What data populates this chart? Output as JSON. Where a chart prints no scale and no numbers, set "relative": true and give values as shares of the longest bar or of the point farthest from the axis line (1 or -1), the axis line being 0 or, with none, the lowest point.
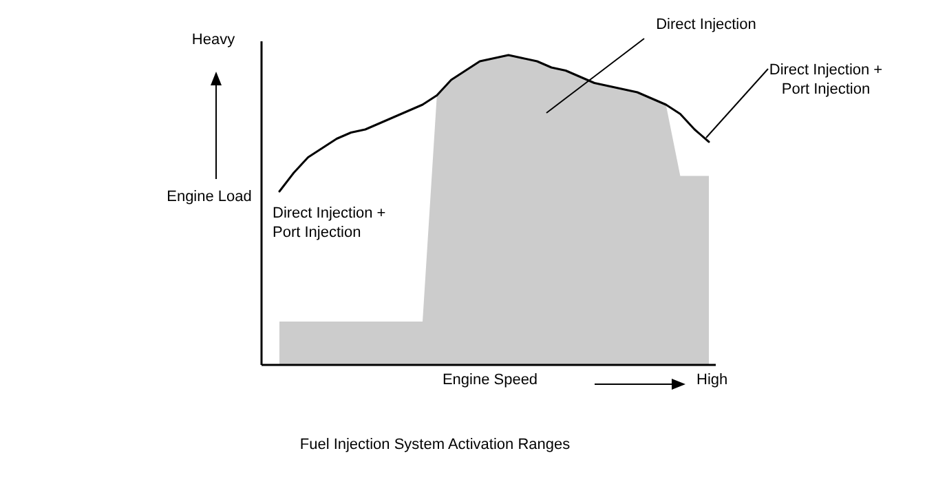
{
  "chart_data": {
    "type": "area",
    "relative": true,
    "title": "Fuel Injection System Activation Ranges",
    "xlabel": "Engine Speed",
    "ylabel": "Engine Load",
    "categories": [
      null,
      null,
      null,
      null,
      null,
      null,
      null,
      null,
      null,
      null,
      null,
      null,
      null,
      null,
      null,
      null,
      null,
      null,
      null,
      null,
      null,
      null,
      null,
      null,
      null,
      null,
      null,
      null,
      null,
      null,
      null
    ],
    "series": [
      {
        "color": "#cccccc",
        "values": [
          0.14,
          0.14,
          0.14,
          0.14,
          0.14,
          0.14,
          0.14,
          0.14,
          0.14,
          0.14,
          0.14,
          0.87,
          0.92,
          0.95,
          0.98,
          0.99,
          1.0,
          0.99,
          0.98,
          0.96,
          0.95,
          0.93,
          0.91,
          0.9,
          0.89,
          0.88,
          0.86,
          0.84,
          0.61,
          0.61,
          0.61
        ]
      },
      {
        "type": "line",
        "color": "#000000",
        "values": [
          0.56,
          0.62,
          0.67,
          0.7,
          0.73,
          0.75,
          0.76,
          0.78,
          0.8,
          0.82,
          0.84,
          0.87,
          0.92,
          0.95,
          0.98,
          0.99,
          1.0,
          0.99,
          0.98,
          0.96,
          0.95,
          0.93,
          0.91,
          0.9,
          0.89,
          0.88,
          0.86,
          0.84,
          0.81,
          0.76,
          0.72
        ]
      }
    ],
    "annotations": [
      "Heavy",
      "High",
      "Direct Injection",
      "Direct Injection +\nPort Injection",
      "Direct Injection +\nPort Injection"
    ]
  }
}
